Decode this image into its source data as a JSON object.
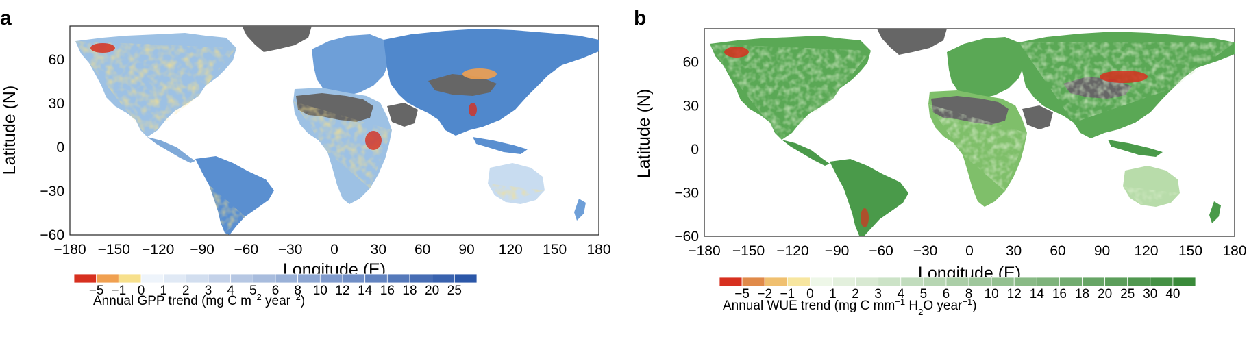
{
  "panels": [
    {
      "letter": "a",
      "colors": {
        "low": [
          "#d7301f",
          "#f0a050",
          "#f7e08c"
        ],
        "high_start": "#eef4fb",
        "high_end": "#2b57a8",
        "desert": "#666666",
        "land_mid": "#9dc1e4"
      },
      "map": {
        "xlabel": "Longitude (E)",
        "ylabel": "Latitude (N)",
        "xlim": [
          -180,
          180
        ],
        "ylim": [
          -60,
          83
        ],
        "xticks": [
          "−180",
          "−150",
          "−120",
          "−90",
          "−60",
          "−30",
          "0",
          "30",
          "60",
          "90",
          "120",
          "150",
          "180"
        ],
        "yticks": [
          "60",
          "30",
          "0",
          "−30",
          "−60"
        ]
      },
      "legend": {
        "title": "Annual GPP trend (mg C m",
        "title_sup": "−2",
        "title_mid": " year",
        "title_sup2": "−2",
        "title_end": ")",
        "labels": [
          "−5",
          "−1",
          "0",
          "1",
          "2",
          "3",
          "4",
          "5",
          "6",
          "8",
          "10",
          "12",
          "14",
          "16",
          "18",
          "20",
          "25"
        ],
        "n_bins": 18
      }
    },
    {
      "letter": "b",
      "colors": {
        "low": [
          "#d7301f",
          "#e08a4a",
          "#f0c070",
          "#f7e6a0"
        ],
        "high_start": "#eef7e8",
        "high_end": "#3a8a3a",
        "desert": "#666666",
        "land_mid": "#7fbf6a"
      },
      "map": {
        "xlabel": "Longitude (E)",
        "ylabel": "Latitude (N)",
        "xlim": [
          -180,
          180
        ],
        "ylim": [
          -60,
          83
        ],
        "xticks": [
          "−180",
          "−150",
          "−120",
          "−90",
          "−60",
          "−30",
          "0",
          "30",
          "60",
          "90",
          "120",
          "150",
          "180"
        ],
        "yticks": [
          "60",
          "30",
          "0",
          "−30",
          "−60"
        ]
      },
      "legend": {
        "title": "Annual WUE trend (mg C mm",
        "title_sup": "−1",
        "title_mid": " H",
        "title_sub": "2",
        "title_mid2": "O year",
        "title_sup2": "−1",
        "title_end": ")",
        "labels": [
          "−5",
          "−2",
          "−1",
          "0",
          "1",
          "2",
          "3",
          "4",
          "5",
          "6",
          "8",
          "10",
          "12",
          "14",
          "16",
          "18",
          "20",
          "25",
          "30",
          "40"
        ],
        "n_bins": 21
      }
    }
  ]
}
